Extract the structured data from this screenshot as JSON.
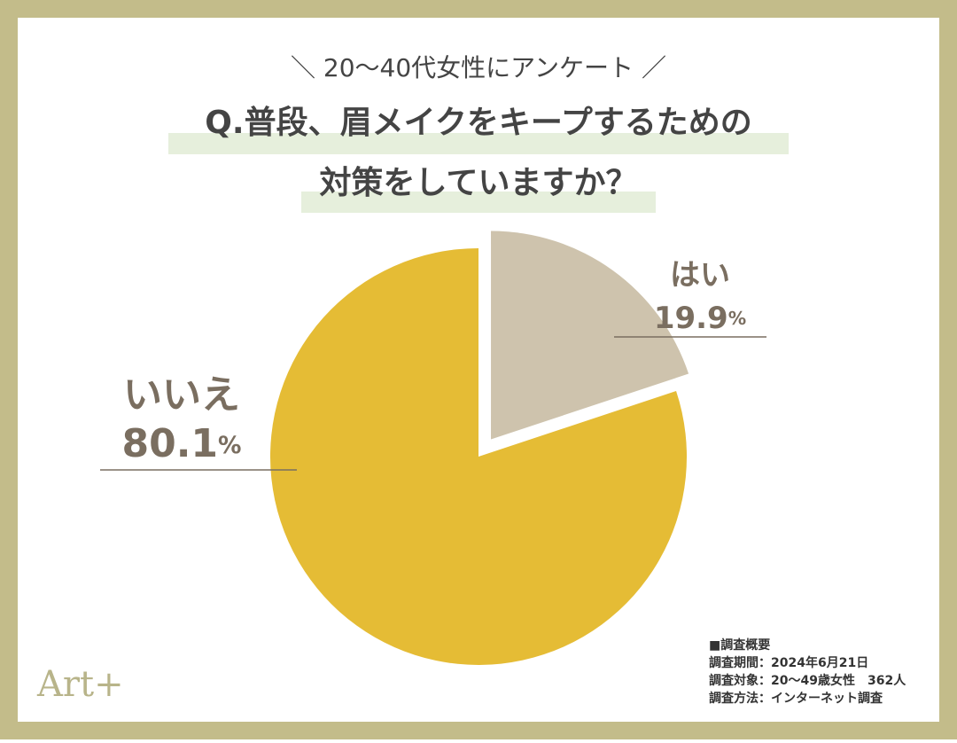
{
  "chart_data": {
    "type": "pie",
    "subtitle": "＼ 20〜40代女性にアンケート ／",
    "title": [
      "Q.普段、眉メイクをキープするための",
      "対策をしていますか？"
    ],
    "categories": [
      "はい",
      "いいえ"
    ],
    "values": [
      19.9,
      80.1
    ],
    "unit": "%",
    "colors": [
      "#cec3ad",
      "#e5bc35"
    ],
    "exploded": [
      true,
      false
    ],
    "notes": [
      "■調査概要",
      "調査期間：2024年6月21日",
      "調査対象：20〜49歳女性　362人",
      "調査方法：インターネット調査"
    ],
    "brand": "Art+"
  }
}
